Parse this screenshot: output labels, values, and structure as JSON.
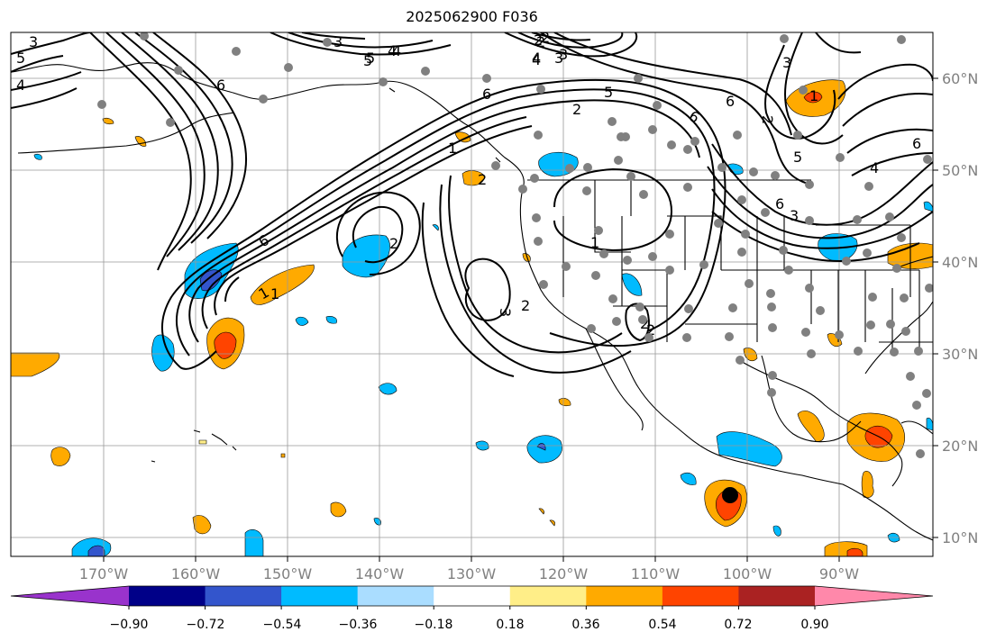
{
  "title": "2025062900 F036",
  "lon_labels": [
    "170°W",
    "160°W",
    "150°W",
    "140°W",
    "130°W",
    "120°W",
    "110°W",
    "100°W",
    "90°W"
  ],
  "lat_labels": [
    "60°N",
    "50°N",
    "40°N",
    "30°N",
    "20°N",
    "10°N"
  ],
  "colorbar": {
    "ticks": [
      "−0.90",
      "−0.72",
      "−0.54",
      "−0.36",
      "−0.18",
      "0.18",
      "0.36",
      "0.54",
      "0.72",
      "0.90"
    ],
    "colors": [
      "#9933cc",
      "#000088",
      "#3355cc",
      "#00bbff",
      "#aaddff",
      "#ffffff",
      "#ffee88",
      "#ffaa00",
      "#ff4400",
      "#aa2222",
      "#ff88aa"
    ]
  },
  "contour_labels": [
    "6",
    "1",
    "2",
    "6",
    "5",
    "6",
    "2",
    "1",
    "2",
    "3",
    "4",
    "5",
    "6",
    "2",
    "3",
    "4",
    "6",
    "5",
    "4",
    "3",
    "2",
    "4",
    "3",
    "2",
    "1",
    "6",
    "5",
    "3",
    "4",
    "1",
    "2",
    "3",
    "2",
    "1",
    "2",
    "2",
    "3",
    "5",
    "4",
    "6"
  ]
}
